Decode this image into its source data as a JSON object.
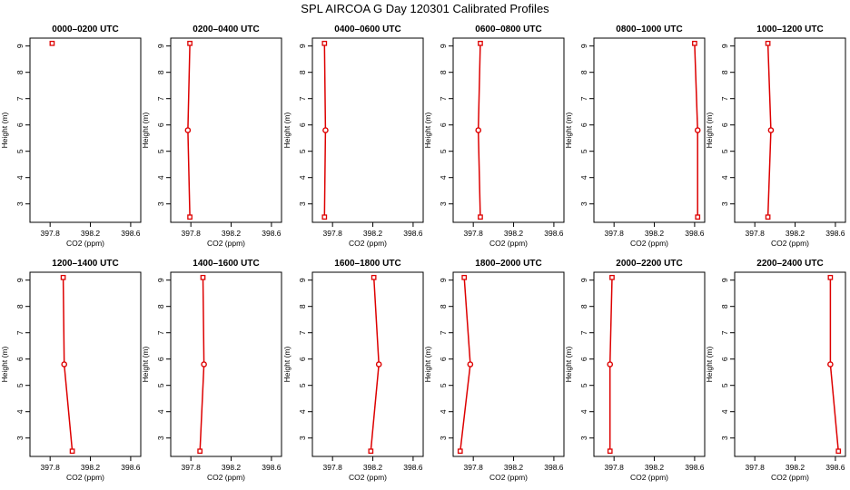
{
  "title": "SPL AIRCOA G  Day 120301  Calibrated Profiles",
  "chart_data": [
    {
      "type": "line",
      "title": "0000–0200 UTC",
      "xlabel": "CO2 (ppm)",
      "ylabel": "Height (m)",
      "xlim": [
        397.6,
        398.7
      ],
      "ylim": [
        2.3,
        9.3
      ],
      "xticks": [
        "397.8",
        "398.2",
        "398.6"
      ],
      "xtick_values": [
        397.8,
        398.2,
        398.6
      ],
      "yticks": [
        "3",
        "4",
        "5",
        "6",
        "7",
        "8",
        "9"
      ],
      "grid": false,
      "series": [
        {
          "x": [
            397.82
          ],
          "y": [
            9.1
          ]
        }
      ]
    },
    {
      "type": "line",
      "title": "0200–0400 UTC",
      "xlabel": "CO2 (ppm)",
      "ylabel": "Height (m)",
      "xlim": [
        397.6,
        398.7
      ],
      "ylim": [
        2.3,
        9.3
      ],
      "xticks": [
        "397.8",
        "398.2",
        "398.6"
      ],
      "xtick_values": [
        397.8,
        398.2,
        398.6
      ],
      "yticks": [
        "3",
        "4",
        "5",
        "6",
        "7",
        "8",
        "9"
      ],
      "grid": false,
      "series": [
        {
          "x": [
            397.79,
            397.77,
            397.79
          ],
          "y": [
            2.5,
            5.8,
            9.1
          ]
        }
      ]
    },
    {
      "type": "line",
      "title": "0400–0600 UTC",
      "xlabel": "CO2 (ppm)",
      "ylabel": "Height (m)",
      "xlim": [
        397.6,
        398.7
      ],
      "ylim": [
        2.3,
        9.3
      ],
      "xticks": [
        "397.8",
        "398.2",
        "398.6"
      ],
      "xtick_values": [
        397.8,
        398.2,
        398.6
      ],
      "yticks": [
        "3",
        "4",
        "5",
        "6",
        "7",
        "8",
        "9"
      ],
      "grid": false,
      "series": [
        {
          "x": [
            397.72,
            397.73,
            397.72
          ],
          "y": [
            2.5,
            5.8,
            9.1
          ]
        }
      ]
    },
    {
      "type": "line",
      "title": "0600–0800 UTC",
      "xlabel": "CO2 (ppm)",
      "ylabel": "Height (m)",
      "xlim": [
        397.6,
        398.7
      ],
      "ylim": [
        2.3,
        9.3
      ],
      "xticks": [
        "397.8",
        "398.2",
        "398.6"
      ],
      "xtick_values": [
        397.8,
        398.2,
        398.6
      ],
      "yticks": [
        "3",
        "4",
        "5",
        "6",
        "7",
        "8",
        "9"
      ],
      "grid": false,
      "series": [
        {
          "x": [
            397.87,
            397.85,
            397.87
          ],
          "y": [
            2.5,
            5.8,
            9.1
          ]
        }
      ]
    },
    {
      "type": "line",
      "title": "0800–1000 UTC",
      "xlabel": "CO2 (ppm)",
      "ylabel": "Height (m)",
      "xlim": [
        397.6,
        398.7
      ],
      "ylim": [
        2.3,
        9.3
      ],
      "xticks": [
        "397.8",
        "398.2",
        "398.6"
      ],
      "xtick_values": [
        397.8,
        398.2,
        398.6
      ],
      "yticks": [
        "3",
        "4",
        "5",
        "6",
        "7",
        "8",
        "9"
      ],
      "grid": false,
      "series": [
        {
          "x": [
            398.63,
            398.63,
            398.6
          ],
          "y": [
            2.5,
            5.8,
            9.1
          ]
        }
      ]
    },
    {
      "type": "line",
      "title": "1000–1200 UTC",
      "xlabel": "CO2 (ppm)",
      "ylabel": "Height (m)",
      "xlim": [
        397.6,
        398.7
      ],
      "ylim": [
        2.3,
        9.3
      ],
      "xticks": [
        "397.8",
        "398.2",
        "398.6"
      ],
      "xtick_values": [
        397.8,
        398.2,
        398.6
      ],
      "yticks": [
        "3",
        "4",
        "5",
        "6",
        "7",
        "8",
        "9"
      ],
      "grid": false,
      "series": [
        {
          "x": [
            397.93,
            397.96,
            397.93
          ],
          "y": [
            2.5,
            5.8,
            9.1
          ]
        }
      ]
    },
    {
      "type": "line",
      "title": "1200–1400 UTC",
      "xlabel": "CO2 (ppm)",
      "ylabel": "Height (m)",
      "xlim": [
        397.6,
        398.7
      ],
      "ylim": [
        2.3,
        9.3
      ],
      "xticks": [
        "397.8",
        "398.2",
        "398.6"
      ],
      "xtick_values": [
        397.8,
        398.2,
        398.6
      ],
      "yticks": [
        "3",
        "4",
        "5",
        "6",
        "7",
        "8",
        "9"
      ],
      "grid": false,
      "series": [
        {
          "x": [
            398.02,
            397.94,
            397.93
          ],
          "y": [
            2.5,
            5.8,
            9.1
          ]
        }
      ]
    },
    {
      "type": "line",
      "title": "1400–1600 UTC",
      "xlabel": "CO2 (ppm)",
      "ylabel": "Height (m)",
      "xlim": [
        397.6,
        398.7
      ],
      "ylim": [
        2.3,
        9.3
      ],
      "xticks": [
        "397.8",
        "398.2",
        "398.6"
      ],
      "xtick_values": [
        397.8,
        398.2,
        398.6
      ],
      "yticks": [
        "3",
        "4",
        "5",
        "6",
        "7",
        "8",
        "9"
      ],
      "grid": false,
      "series": [
        {
          "x": [
            397.89,
            397.93,
            397.92
          ],
          "y": [
            2.5,
            5.8,
            9.1
          ]
        }
      ]
    },
    {
      "type": "line",
      "title": "1600–1800 UTC",
      "xlabel": "CO2 (ppm)",
      "ylabel": "Height (m)",
      "xlim": [
        397.6,
        398.7
      ],
      "ylim": [
        2.3,
        9.3
      ],
      "xticks": [
        "397.8",
        "398.2",
        "398.6"
      ],
      "xtick_values": [
        397.8,
        398.2,
        398.6
      ],
      "yticks": [
        "3",
        "4",
        "5",
        "6",
        "7",
        "8",
        "9"
      ],
      "grid": false,
      "series": [
        {
          "x": [
            398.18,
            398.26,
            398.21
          ],
          "y": [
            2.5,
            5.8,
            9.1
          ]
        }
      ]
    },
    {
      "type": "line",
      "title": "1800–2000 UTC",
      "xlabel": "CO2 (ppm)",
      "ylabel": "Height (m)",
      "xlim": [
        397.6,
        398.7
      ],
      "ylim": [
        2.3,
        9.3
      ],
      "xticks": [
        "397.8",
        "398.2",
        "398.6"
      ],
      "xtick_values": [
        397.8,
        398.2,
        398.6
      ],
      "yticks": [
        "3",
        "4",
        "5",
        "6",
        "7",
        "8",
        "9"
      ],
      "grid": false,
      "series": [
        {
          "x": [
            397.67,
            397.77,
            397.71
          ],
          "y": [
            2.5,
            5.8,
            9.1
          ]
        }
      ]
    },
    {
      "type": "line",
      "title": "2000–2200 UTC",
      "xlabel": "CO2 (ppm)",
      "ylabel": "Height (m)",
      "xlim": [
        397.6,
        398.7
      ],
      "ylim": [
        2.3,
        9.3
      ],
      "xticks": [
        "397.8",
        "398.2",
        "398.6"
      ],
      "xtick_values": [
        397.8,
        398.2,
        398.6
      ],
      "yticks": [
        "3",
        "4",
        "5",
        "6",
        "7",
        "8",
        "9"
      ],
      "grid": false,
      "series": [
        {
          "x": [
            397.76,
            397.76,
            397.78
          ],
          "y": [
            2.5,
            5.8,
            9.1
          ]
        }
      ]
    },
    {
      "type": "line",
      "title": "2200–2400 UTC",
      "xlabel": "CO2 (ppm)",
      "ylabel": "Height (m)",
      "xlim": [
        397.6,
        398.7
      ],
      "ylim": [
        2.3,
        9.3
      ],
      "xticks": [
        "397.8",
        "398.2",
        "398.6"
      ],
      "xtick_values": [
        397.8,
        398.2,
        398.6
      ],
      "yticks": [
        "3",
        "4",
        "5",
        "6",
        "7",
        "8",
        "9"
      ],
      "grid": false,
      "series": [
        {
          "x": [
            398.63,
            398.55,
            398.55
          ],
          "y": [
            2.5,
            5.8,
            9.1
          ]
        }
      ]
    }
  ],
  "colors": {
    "series": "#dd0000",
    "marker": "#dd0000",
    "axis": "#000000"
  }
}
